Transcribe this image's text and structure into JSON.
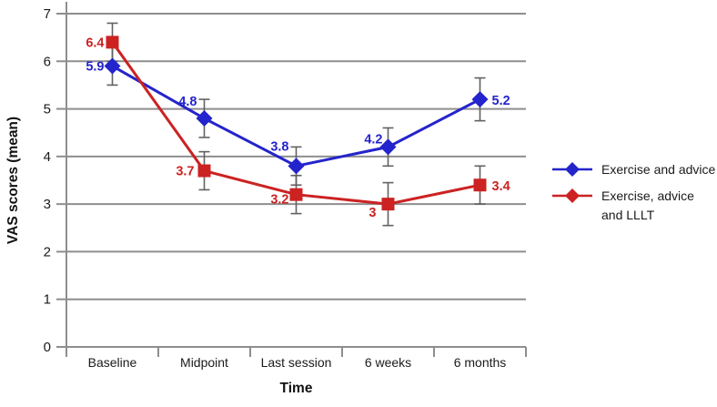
{
  "chart_data": {
    "type": "line",
    "title": "",
    "xlabel": "Time",
    "ylabel": "VAS scores (mean)",
    "categories": [
      "Baseline",
      "Midpoint",
      "Last session",
      "6 weeks",
      "6 months"
    ],
    "ylim": [
      0,
      7
    ],
    "ytick_step": 1,
    "ytick_labels": [
      "0",
      "1",
      "2",
      "3",
      "4",
      "5",
      "6",
      "7"
    ],
    "grid": "horizontal gridlines on",
    "legend_position": "right of plot",
    "colors": {
      "axis_gray": "#8e8e8e",
      "error_bar_gray": "#616161",
      "text_dark": "#1a1a1a",
      "background": "#ffffff"
    },
    "series": [
      {
        "name": "Exercise and advice",
        "legend_label": "Exercise and advice",
        "color": "#2424cc",
        "marker": "diamond",
        "values": [
          5.9,
          4.8,
          3.8,
          4.2,
          5.2
        ],
        "data_labels": [
          "5.9",
          "4.8",
          "3.8",
          "4.2",
          "5.2"
        ],
        "error_bars": [
          0.4,
          0.4,
          0.4,
          0.4,
          0.45
        ],
        "label_offsets": [
          {
            "dx": -9,
            "dy": 5,
            "anchor": "end"
          },
          {
            "dx": -8,
            "dy": -14,
            "anchor": "end"
          },
          {
            "dx": -8,
            "dy": -17,
            "anchor": "end"
          },
          {
            "dx": -6,
            "dy": -4,
            "anchor": "end"
          },
          {
            "dx": 13,
            "dy": 6,
            "anchor": "start"
          }
        ]
      },
      {
        "name": "Exercise, advice and LLLT",
        "legend_label": "Exercise, advice\nand LLLT",
        "color": "#cc2222",
        "marker": "square",
        "values": [
          6.4,
          3.7,
          3.2,
          3,
          3.4
        ],
        "data_labels": [
          "6.4",
          "3.7",
          "3.2",
          "3",
          "3.4"
        ],
        "error_bars": [
          0.4,
          0.4,
          0.4,
          0.45,
          0.4
        ],
        "label_offsets": [
          {
            "dx": -9,
            "dy": 5,
            "anchor": "end"
          },
          {
            "dx": -11,
            "dy": 5,
            "anchor": "end"
          },
          {
            "dx": -8,
            "dy": 10,
            "anchor": "end"
          },
          {
            "dx": -13,
            "dy": 14,
            "anchor": "end"
          },
          {
            "dx": 13,
            "dy": 6,
            "anchor": "start"
          }
        ]
      }
    ]
  }
}
